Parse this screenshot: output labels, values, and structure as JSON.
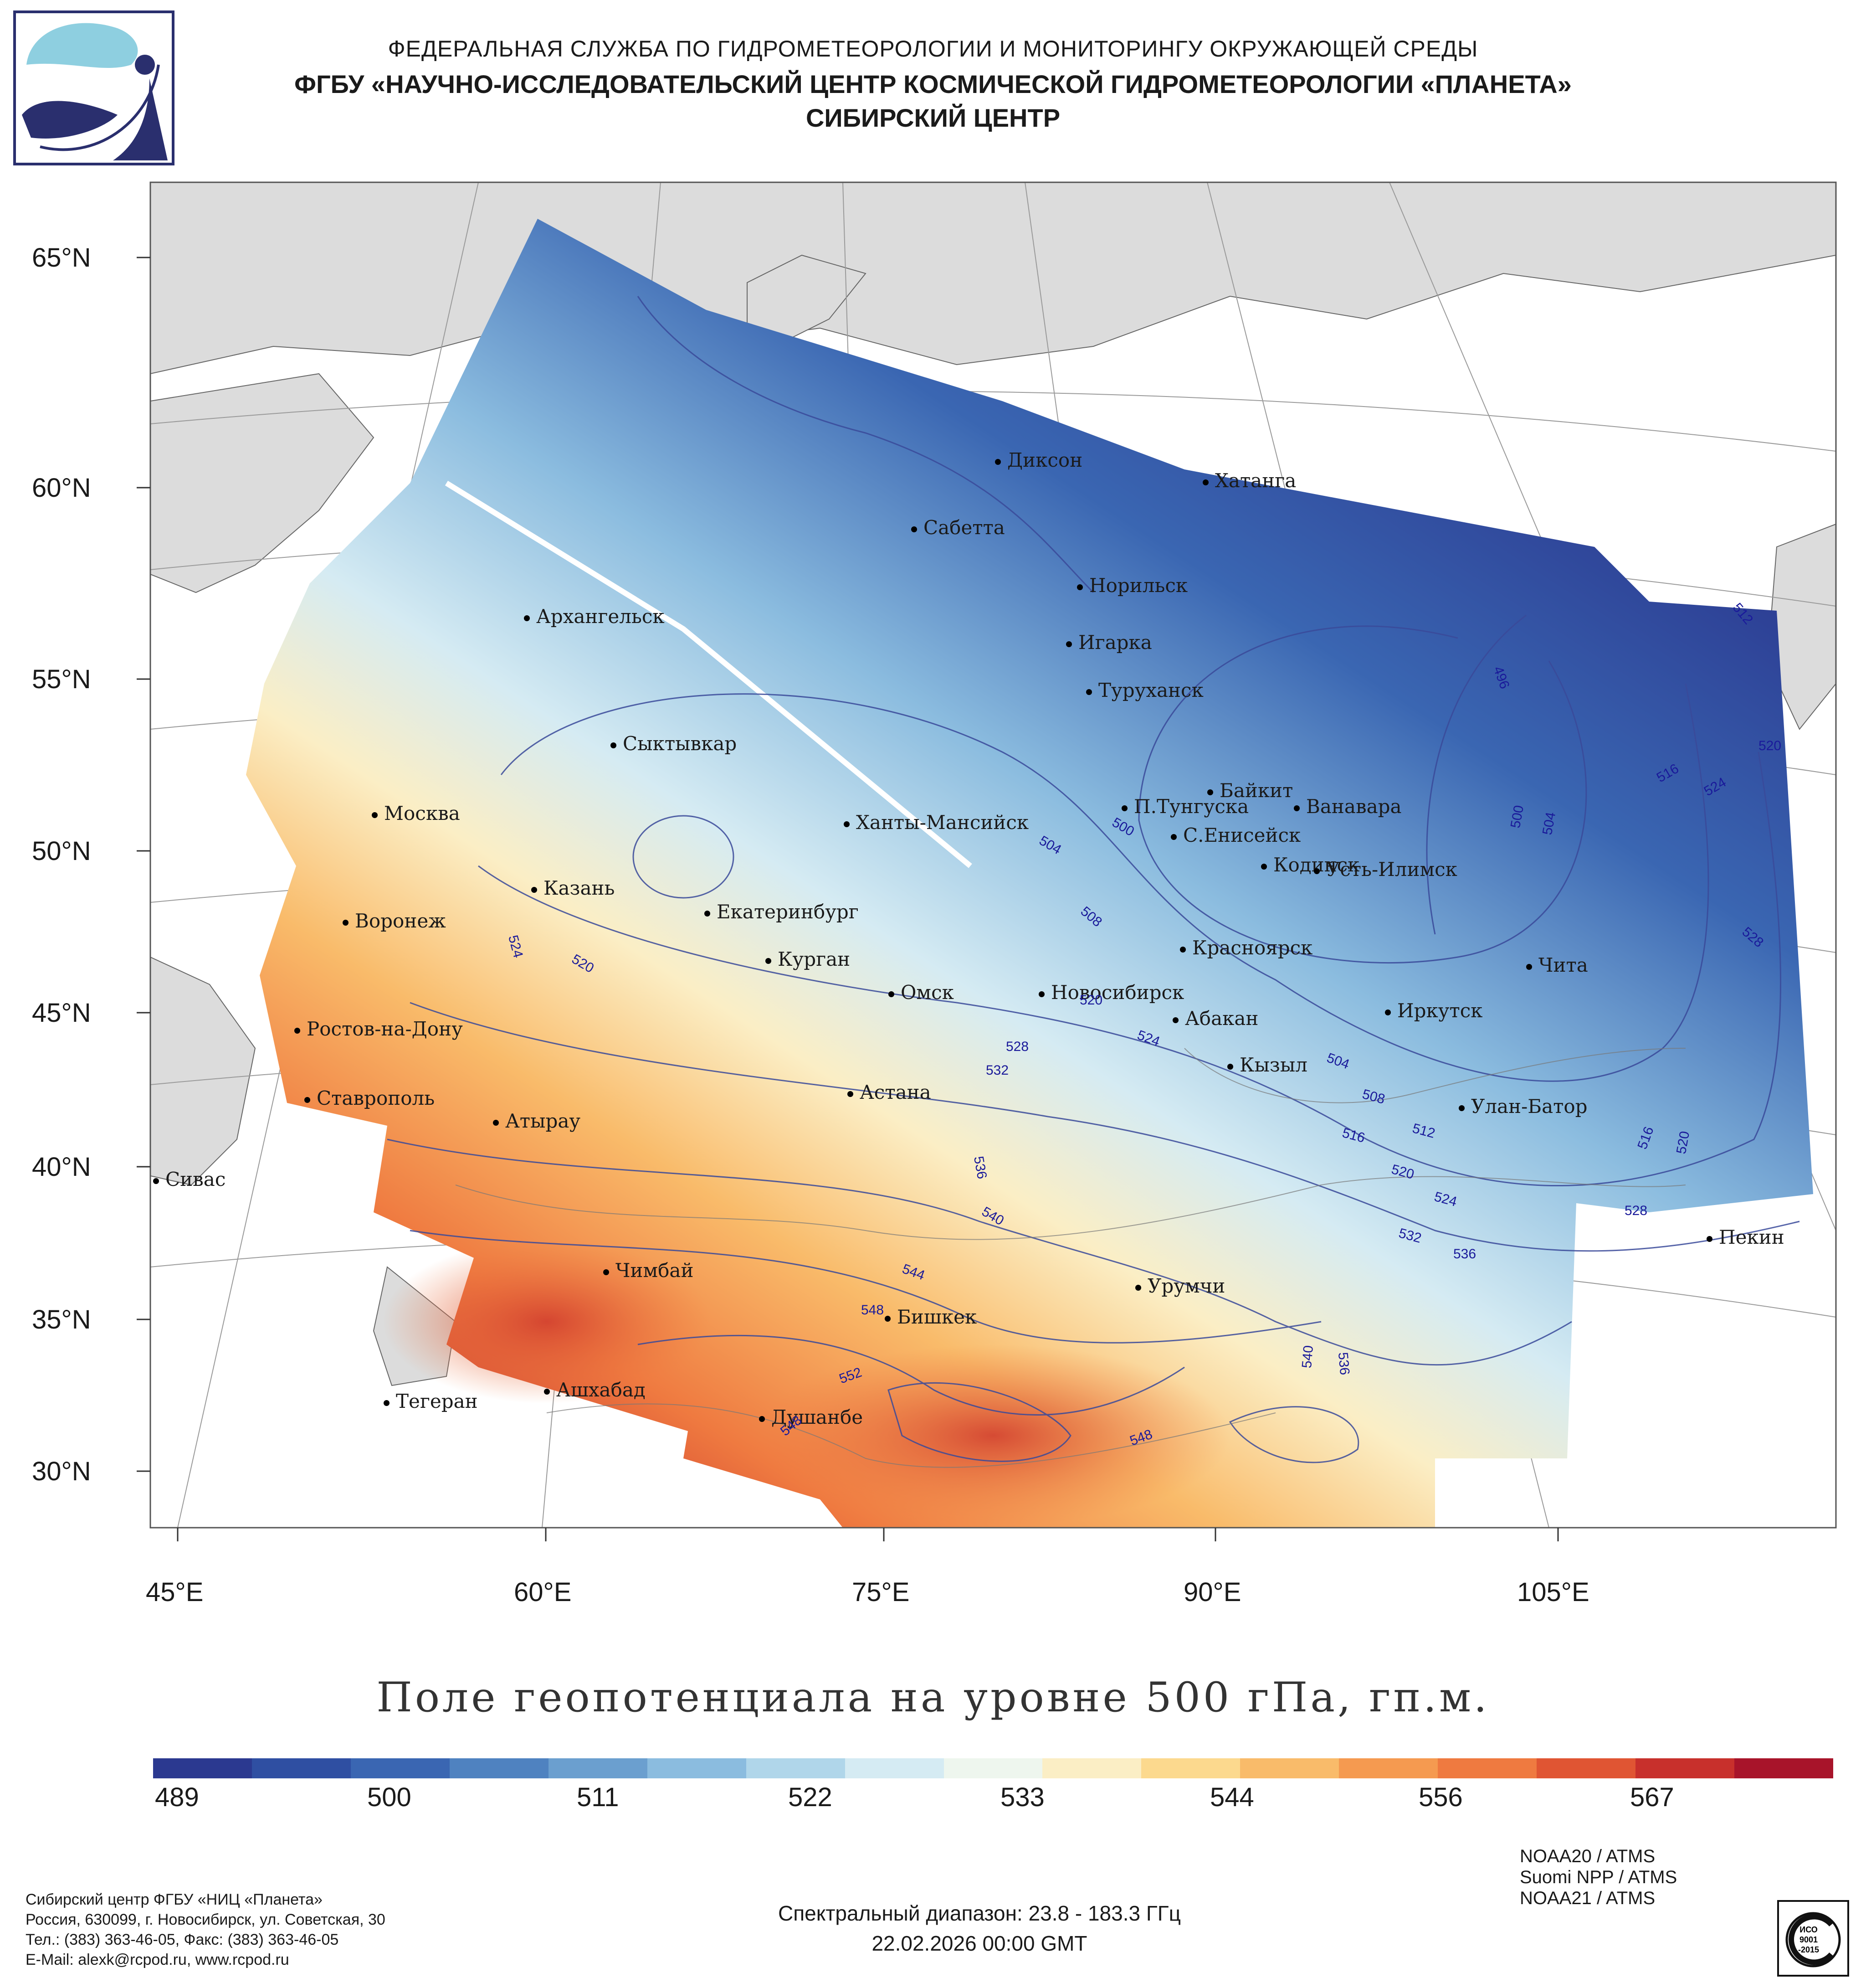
{
  "header": {
    "line1": "ФЕДЕРАЛЬНАЯ СЛУЖБА ПО ГИДРОМЕТЕОРОЛОГИИ И МОНИТОРИНГУ ОКРУЖАЮЩЕЙ СРЕДЫ",
    "line2": "ФГБУ «НАУЧНО-ИССЛЕДОВАТЕЛЬСКИЙ ЦЕНТР КОСМИЧЕСКОЙ ГИДРОМЕТЕОРОЛОГИИ «ПЛАНЕТА»",
    "line3": "СИБИРСКИЙ ЦЕНТР"
  },
  "axes": {
    "lat": [
      "65°N",
      "60°N",
      "55°N",
      "50°N",
      "45°N",
      "40°N",
      "35°N",
      "30°N"
    ],
    "lon": [
      "45°E",
      "60°E",
      "75°E",
      "90°E",
      "105°E"
    ]
  },
  "cities": [
    "Диксон",
    "Хатанга",
    "Сабетта",
    "Норильск",
    "Архангельск",
    "Игарка",
    "Туруханск",
    "Сыктывкар",
    "Байкит",
    "П.Тунгуска",
    "Ванавара",
    "Москва",
    "Ханты-Мансийск",
    "С.Енисейск",
    "Кодинск",
    "Усть-Илимск",
    "Казань",
    "Екатеринбург",
    "Воронеж",
    "Красноярск",
    "Курган",
    "Чита",
    "Омск",
    "Новосибирск",
    "Иркутск",
    "Ростов-на-Дону",
    "Абакан",
    "Кызыл",
    "Астана",
    "Ставрополь",
    "Улан-Батор",
    "Атырау",
    "Сивас",
    "Пекин",
    "Чимбай",
    "Урумчи",
    "Бишкек",
    "Ашхабад",
    "Тегеран",
    "Душанбе"
  ],
  "contour_labels": [
    "512",
    "496",
    "520",
    "516",
    "524",
    "500",
    "504",
    "528",
    "504",
    "500",
    "508",
    "524",
    "520",
    "520",
    "528",
    "532",
    "524",
    "504",
    "508",
    "512",
    "516",
    "520",
    "524",
    "532",
    "536",
    "516",
    "520",
    "528",
    "536",
    "540",
    "544",
    "548",
    "552",
    "548",
    "540",
    "536",
    "548"
  ],
  "title": "Поле геопотенциала на уровне 500 гПа, гп.м.",
  "colorbar": {
    "ticks": [
      "489",
      "500",
      "511",
      "522",
      "533",
      "544",
      "556",
      "567"
    ],
    "colors": [
      "#2b3990",
      "#2f4fa2",
      "#3a66b2",
      "#4f82c0",
      "#6b9fcf",
      "#8bbcdf",
      "#b0d6ea",
      "#d5ebf3",
      "#eef6ee",
      "#fbeec5",
      "#fcd98e",
      "#f9bb6a",
      "#f59a50",
      "#ef7a40",
      "#e05533",
      "#c8302c",
      "#a8142a"
    ]
  },
  "footer": {
    "org_lines": [
      "Сибирский центр ФГБУ «НИЦ «Планета»",
      "Россия, 630099, г. Новосибирск, ул. Советская, 30",
      "Тел.: (383) 363-46-05, Факс: (383) 363-46-05",
      "E-Mail: alexk@rcpod.ru, www.rcpod.ru"
    ],
    "spectral": "Спектральный диапазон: 23.8 - 183.3 ГГц",
    "datetime": "22.02.2026 00:00 GMT",
    "satellites": [
      "NOAA20 / ATMS",
      "Suomi NPP / ATMS",
      "NOAA21 / ATMS"
    ],
    "iso": [
      "ИСО",
      "9001",
      "-2015"
    ]
  }
}
